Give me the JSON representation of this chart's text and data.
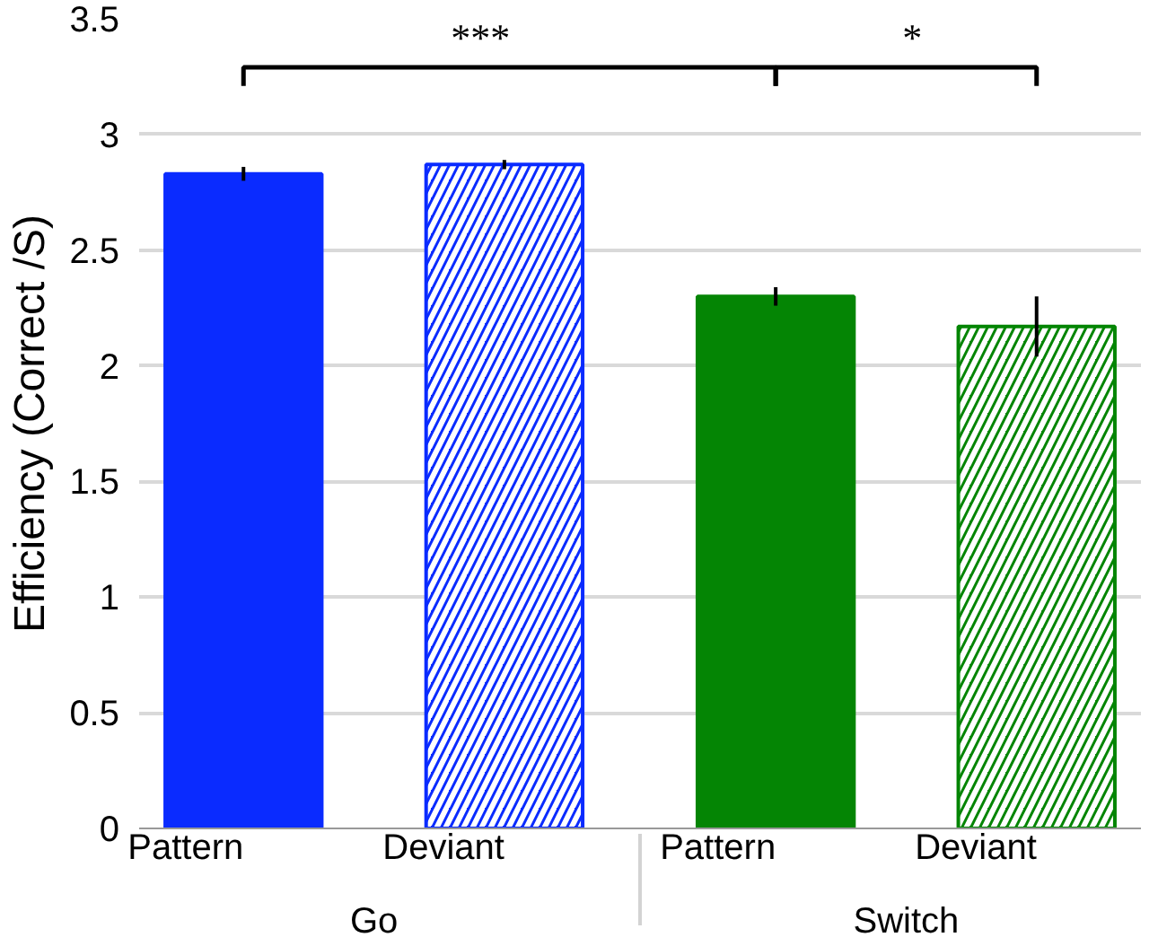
{
  "chart_data": {
    "type": "bar",
    "ylabel": "Efficiency (Correct /S)",
    "categories": [
      "Go",
      "Switch"
    ],
    "series": [
      {
        "name": "Pattern",
        "colors": [
          "#0a2bff",
          "#048504"
        ],
        "values": [
          2.83,
          2.3
        ],
        "errors": [
          0.03,
          0.04
        ]
      },
      {
        "name": "Deviant",
        "colors": [
          "#0a2bff",
          "#048504"
        ],
        "values": [
          2.87,
          2.17
        ],
        "errors": [
          0.02,
          0.13
        ]
      }
    ],
    "ylim": [
      0,
      3.5
    ],
    "yticks": [
      0,
      0.5,
      1,
      1.5,
      2,
      2.5,
      3,
      3.5
    ],
    "grid": "y",
    "annotations": [
      "***",
      "*"
    ]
  }
}
